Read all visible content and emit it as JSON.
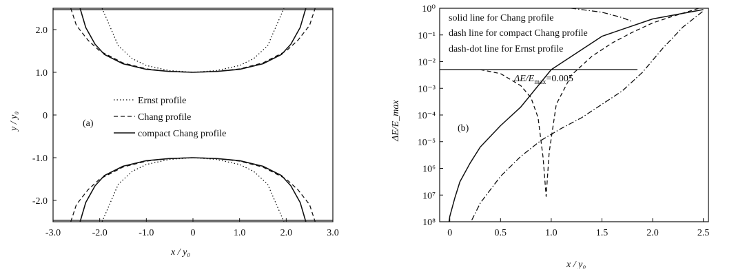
{
  "chart_data": [
    {
      "type": "line",
      "panel_label": "(a)",
      "xlabel": "x / y₀",
      "ylabel": "y / y₀",
      "xlim": [
        -3.0,
        3.0
      ],
      "ylim": [
        -2.5,
        2.5
      ],
      "xticks": [
        "-3.0",
        "-2.0",
        "-1.0",
        "0",
        "1.0",
        "2.0",
        "3.0"
      ],
      "yticks": [
        "-2.0",
        "-1.0",
        "0",
        "1.0",
        "2.0"
      ],
      "grid": false,
      "legend_position": "center",
      "series": [
        {
          "name": "Ernst profile",
          "style": "dotted",
          "x": [
            -1.95,
            -1.6,
            -1.3,
            -1.0,
            -0.5,
            0,
            0.5,
            1.0,
            1.3,
            1.6,
            1.95
          ],
          "y": [
            2.5,
            1.62,
            1.32,
            1.16,
            1.04,
            1.0,
            1.04,
            1.16,
            1.32,
            1.62,
            2.5
          ]
        },
        {
          "name": "Chang profile",
          "style": "dashed",
          "x": [
            -2.62,
            -2.5,
            -2.25,
            -2.0,
            -1.5,
            -1.0,
            -0.5,
            0,
            0.5,
            1.0,
            1.5,
            2.0,
            2.25,
            2.5,
            2.62
          ],
          "y": [
            2.5,
            2.1,
            1.75,
            1.5,
            1.22,
            1.08,
            1.02,
            1.0,
            1.02,
            1.08,
            1.22,
            1.5,
            1.75,
            2.1,
            2.5
          ]
        },
        {
          "name": "compact Chang profile",
          "style": "solid",
          "x": [
            -2.42,
            -2.3,
            -2.1,
            -1.9,
            -1.5,
            -1.0,
            -0.5,
            0,
            0.5,
            1.0,
            1.5,
            1.9,
            2.1,
            2.3,
            2.42
          ],
          "y": [
            2.5,
            2.05,
            1.66,
            1.42,
            1.2,
            1.07,
            1.02,
            1.0,
            1.02,
            1.07,
            1.2,
            1.42,
            1.66,
            2.05,
            2.5
          ]
        }
      ]
    },
    {
      "type": "line",
      "panel_label": "(b)",
      "xlabel": "x / y₀",
      "ylabel": "ΔE/E_max",
      "xlim": [
        -0.1,
        2.55
      ],
      "ylim_log10": [
        -8,
        0
      ],
      "yscale": "log",
      "xticks": [
        "0",
        "0.5",
        "1.0",
        "1.5",
        "2.0",
        "2.5"
      ],
      "yticks": [
        "10⁸",
        "10⁷",
        "10⁶",
        "10⁻⁵",
        "10⁻⁴",
        "10⁻³",
        "10⁻²",
        "10⁻¹",
        "10⁰"
      ],
      "grid": false,
      "legend_position": "top-left",
      "legend_lines": [
        "solid line for Chang profile",
        "dash line for compact Chang profile",
        "dash-dot line for Ernst profile"
      ],
      "threshold": {
        "value": 0.005,
        "label_prefix": "ΔE/E",
        "label_sub": "max",
        "label_suffix": "=0.005"
      },
      "series": [
        {
          "name": "solid line for Chang profile",
          "style": "solid",
          "x": [
            -0.02,
            0.0,
            0.05,
            0.1,
            0.2,
            0.3,
            0.5,
            0.7,
            1.0,
            1.5,
            2.0,
            2.5
          ],
          "log10_y": [
            -8.3,
            -7.8,
            -7.1,
            -6.5,
            -5.8,
            -5.2,
            -4.4,
            -3.7,
            -2.3,
            -1.05,
            -0.4,
            -0.05
          ]
        },
        {
          "name": "dash line for compact Chang profile",
          "style": "dashed",
          "x": [
            0.3,
            0.5,
            0.7,
            0.8,
            0.87,
            0.92,
            0.95,
            0.98,
            1.05,
            1.2,
            1.4,
            1.6,
            1.8,
            2.0,
            2.2,
            2.5
          ],
          "log10_y": [
            -2.3,
            -2.45,
            -2.9,
            -3.35,
            -4.1,
            -5.6,
            -7.05,
            -5.4,
            -3.6,
            -2.5,
            -1.8,
            -1.3,
            -0.9,
            -0.55,
            -0.3,
            0.05
          ]
        },
        {
          "name": "dash-dot line for Ernst profile",
          "style": "dashdot",
          "x": [
            0.17,
            0.3,
            0.5,
            0.7,
            0.9,
            1.1,
            1.3,
            1.5,
            1.7,
            1.9,
            2.1,
            2.3,
            2.5
          ],
          "log10_y": [
            -8.3,
            -7.3,
            -6.3,
            -5.55,
            -4.95,
            -4.5,
            -4.1,
            -3.6,
            -3.1,
            -2.4,
            -1.5,
            -0.7,
            -0.1
          ]
        },
        {
          "name": "Ernst profile upper branch",
          "style": "dashdot",
          "x": [
            0.35,
            0.8,
            1.2,
            1.5,
            1.7,
            1.8
          ],
          "log10_y": [
            0.08,
            0.06,
            0.0,
            -0.15,
            -0.35,
            -0.5
          ]
        }
      ]
    }
  ]
}
